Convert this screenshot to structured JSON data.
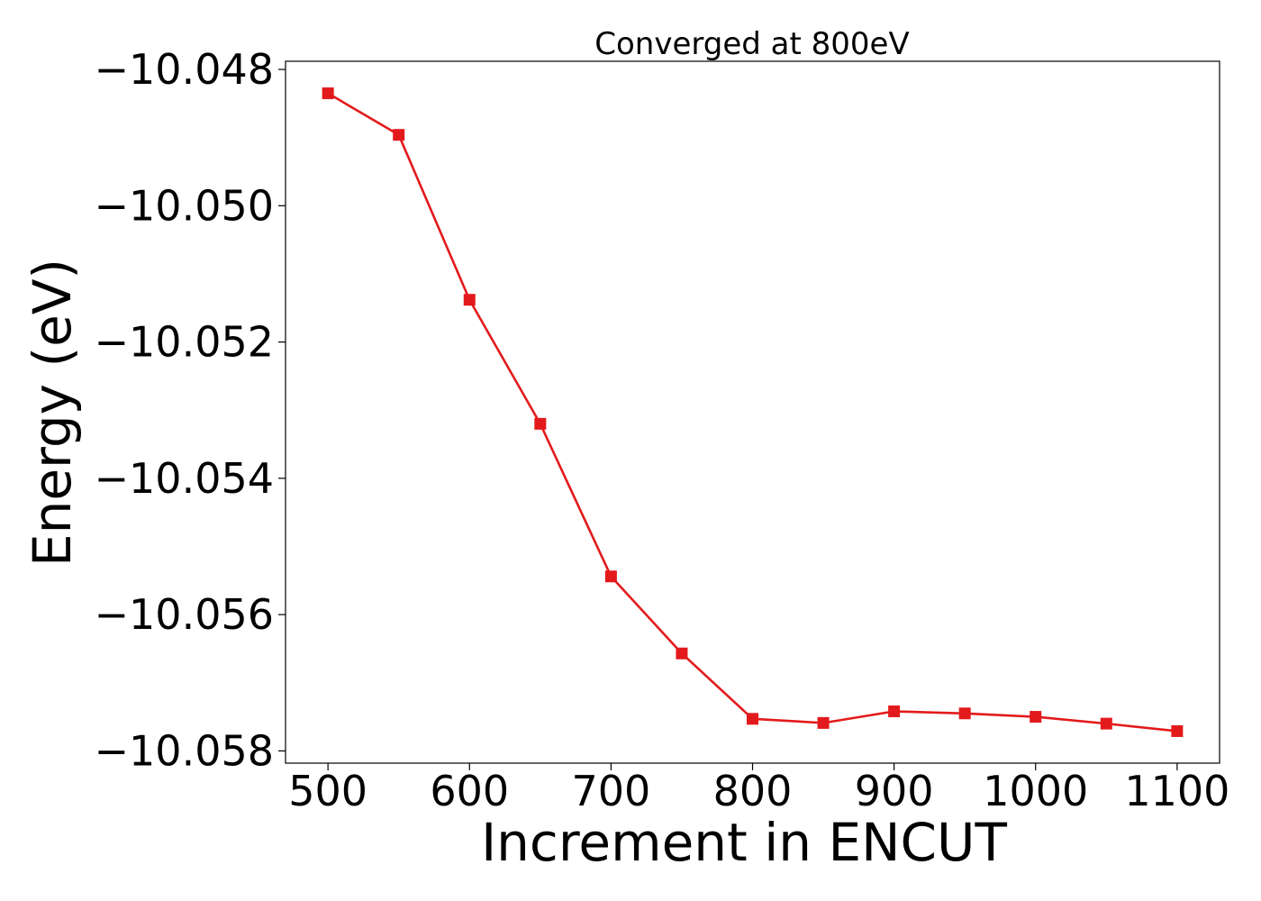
{
  "chart_data": {
    "type": "line",
    "title": "Converged at 800eV",
    "xlabel": "Increment in ENCUT",
    "ylabel": "Energy (eV)",
    "x": [
      500,
      550,
      600,
      650,
      700,
      750,
      800,
      850,
      900,
      950,
      1000,
      1050,
      1100
    ],
    "series": [
      {
        "values": [
          -10.04835,
          -10.04896,
          -10.05138,
          -10.0532,
          -10.05544,
          -10.05657,
          -10.05753,
          -10.05759,
          -10.05742,
          -10.05745,
          -10.0575,
          -10.0576,
          -10.05771
        ],
        "color": "#e31a1c",
        "marker": "square"
      }
    ],
    "xticks": [
      500,
      600,
      700,
      800,
      900,
      1000,
      1100
    ],
    "xtick_labels": [
      "500",
      "600",
      "700",
      "800",
      "900",
      "1000",
      "1100"
    ],
    "yticks": [
      -10.048,
      -10.05,
      -10.052,
      -10.054,
      -10.056,
      -10.058
    ],
    "ytick_labels": [
      "−10.048",
      "−10.050",
      "−10.052",
      "−10.054",
      "−10.056",
      "−10.058"
    ],
    "xlim": [
      470,
      1130
    ],
    "ylim": [
      -10.05818,
      -10.04788
    ],
    "grid": false,
    "legend": "none"
  }
}
